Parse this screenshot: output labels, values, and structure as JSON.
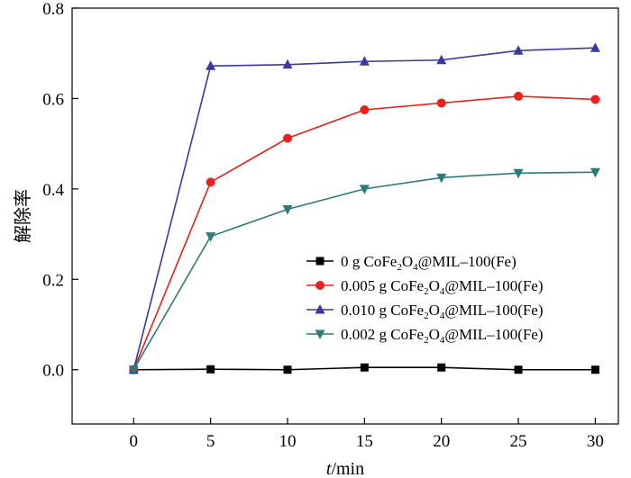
{
  "chart_data": {
    "type": "line",
    "xlabel_italic": "t",
    "xlabel_rest": "/min",
    "ylabel": "解除率",
    "xlim": [
      -4,
      31.5
    ],
    "ylim": [
      -0.12,
      0.8
    ],
    "xticks": [
      0,
      5,
      10,
      15,
      20,
      25,
      30
    ],
    "yticks": [
      0.0,
      0.2,
      0.4,
      0.6,
      0.8
    ],
    "ytick_labels": [
      "0.0",
      "0.2",
      "0.4",
      "0.6",
      "0.8"
    ],
    "x": [
      0,
      5,
      10,
      15,
      20,
      25,
      30
    ],
    "legend_position": "center-right",
    "series": [
      {
        "name": "0 g CoFe2O4@MIL-100(Fe)",
        "label_parts": [
          "0 g CoFe",
          "2",
          "O",
          "4",
          "@MIL–100(Fe)"
        ],
        "color": "#000000",
        "marker": "square",
        "values": [
          0.0,
          0.001,
          0.0,
          0.005,
          0.005,
          0.0,
          0.0
        ]
      },
      {
        "name": "0.005 g CoFe2O4@MIL-100(Fe)",
        "label_parts": [
          "0.005 g CoFe",
          "2",
          "O",
          "4",
          "@MIL–100(Fe)"
        ],
        "color": "#e8221e",
        "marker": "circle",
        "values": [
          0.0,
          0.415,
          0.512,
          0.575,
          0.59,
          0.605,
          0.598
        ]
      },
      {
        "name": "0.010 g CoFe2O4@MIL-100(Fe)",
        "label_parts": [
          "0.010 g CoFe",
          "2",
          "O",
          "4",
          "@MIL–100(Fe)"
        ],
        "color": "#3a3a9a",
        "marker": "triangle-up",
        "values": [
          0.0,
          0.672,
          0.675,
          0.682,
          0.685,
          0.706,
          0.712
        ]
      },
      {
        "name": "0.002 g CoFe2O4@MIL-100(Fe)",
        "label_parts": [
          "0.002 g CoFe",
          "2",
          "O",
          "4",
          "@MIL–100(Fe)"
        ],
        "color": "#2f7a78",
        "marker": "triangle-down",
        "values": [
          0.0,
          0.295,
          0.355,
          0.4,
          0.425,
          0.435,
          0.437
        ]
      }
    ]
  }
}
